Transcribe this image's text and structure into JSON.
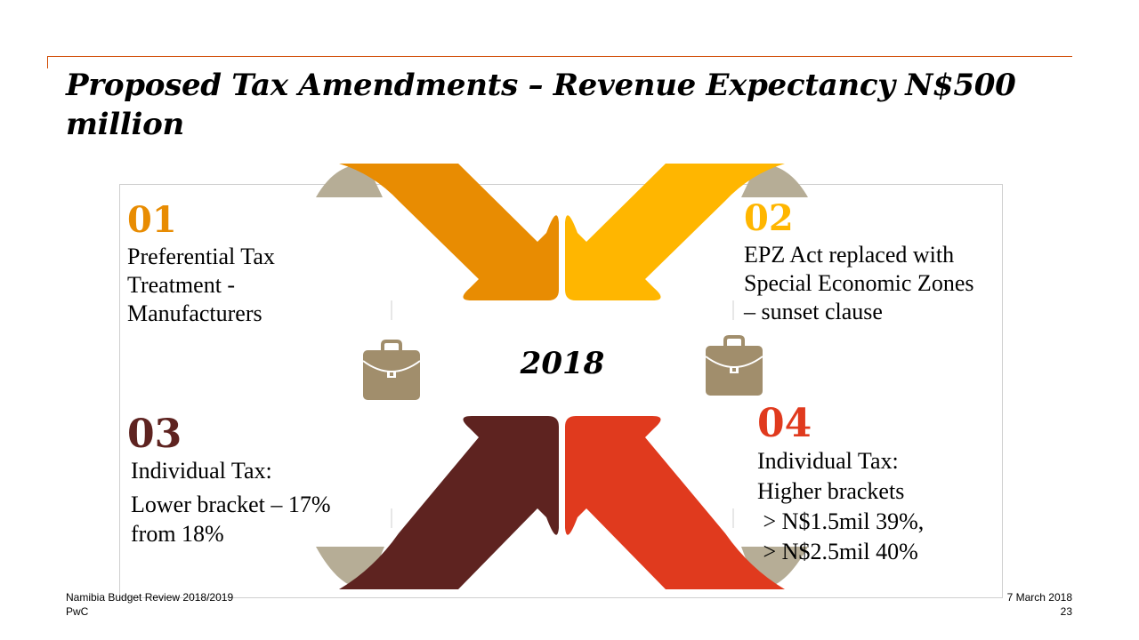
{
  "title": "Proposed Tax Amendments – Revenue Expectancy N$500 million",
  "center_year": "2018",
  "items": [
    {
      "number": "01",
      "lines": [
        "Preferential Tax",
        "Treatment -",
        "Manufacturers"
      ]
    },
    {
      "number": "02",
      "lines": [
        "EPZ Act replaced with",
        "Special Economic Zones",
        "– sunset clause"
      ]
    },
    {
      "number": "03",
      "lines": [
        "Individual Tax:",
        "Lower bracket – 17%",
        "from 18%"
      ]
    },
    {
      "number": "04",
      "lines": [
        "Individual Tax:",
        "Higher brackets",
        " > N$1.5mil 39%,",
        " > N$2.5mil 40%"
      ]
    }
  ],
  "footer": {
    "left_line1": "Namibia Budget Review 2018/2019",
    "left_line2": "PwC",
    "right_line1": "7 March 2018",
    "right_line2": "23"
  },
  "icons": [
    "briefcase-icon",
    "briefcase-icon"
  ],
  "colors": {
    "accent_line": "#d04a02",
    "item1": "#e88c02",
    "item2": "#ffb600",
    "item3": "#5e2320",
    "item4": "#e03a1e",
    "fold": "#b6ad96",
    "briefcase": "#a18e6c"
  }
}
